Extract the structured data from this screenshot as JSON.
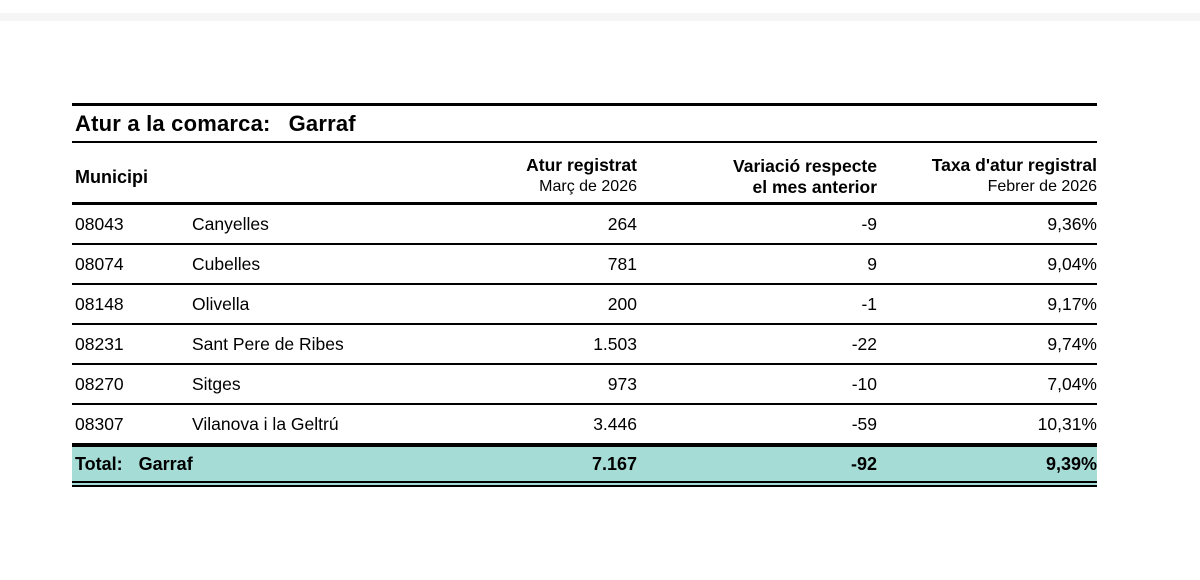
{
  "colors": {
    "total_row_background": "#a5dcd6",
    "top_band": "#f5f5f5",
    "text": "#000000",
    "rule": "#000000"
  },
  "report": {
    "title_label": "Atur a la comarca:",
    "title_value": "Garraf",
    "columns": {
      "municipi": "Municipi",
      "atur_line1": "Atur registrat",
      "atur_line2": "Març de 2026",
      "variacio_line1": "Variació respecte",
      "variacio_line2": "el mes anterior",
      "taxa_line1": "Taxa d'atur registral",
      "taxa_line2": "Febrer de 2026"
    },
    "rows": [
      {
        "code": "08043",
        "name": "Canyelles",
        "atur": "264",
        "variacio": "-9",
        "taxa": "9,36%"
      },
      {
        "code": "08074",
        "name": "Cubelles",
        "atur": "781",
        "variacio": "9",
        "taxa": "9,04%"
      },
      {
        "code": "08148",
        "name": "Olivella",
        "atur": "200",
        "variacio": "-1",
        "taxa": "9,17%"
      },
      {
        "code": "08231",
        "name": "Sant Pere de Ribes",
        "atur": "1.503",
        "variacio": "-22",
        "taxa": "9,74%"
      },
      {
        "code": "08270",
        "name": "Sitges",
        "atur": "973",
        "variacio": "-10",
        "taxa": "7,04%"
      },
      {
        "code": "08307",
        "name": "Vilanova i la Geltrú",
        "atur": "3.446",
        "variacio": "-59",
        "taxa": "10,31%"
      }
    ],
    "total": {
      "label": "Total:",
      "name": "Garraf",
      "atur": "7.167",
      "variacio": "-92",
      "taxa": "9,39%"
    }
  }
}
